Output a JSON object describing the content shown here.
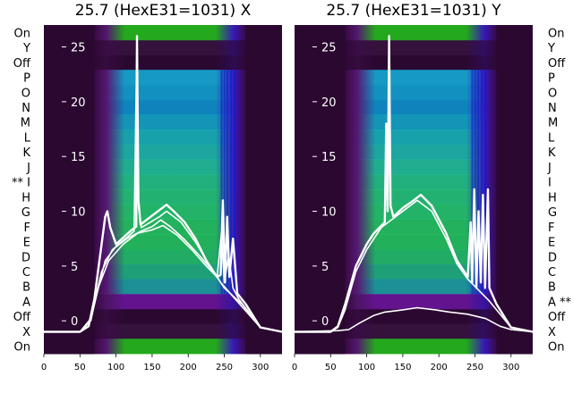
{
  "chart_data": [
    {
      "type": "heatmap",
      "title": "25.7 (HexE31=1031) X",
      "xlim": [
        0,
        330
      ],
      "x_ticks": [
        0,
        50,
        100,
        150,
        200,
        250,
        300
      ],
      "overlay_ylim": [
        -3,
        27
      ],
      "overlay_y_ticks": [
        0,
        5,
        10,
        15,
        20,
        25
      ],
      "row_labels": [
        "On",
        "Y",
        "Off",
        "P",
        "O",
        "N",
        "M",
        "L",
        "K",
        "J",
        "** I",
        "H",
        "G",
        "F",
        "E",
        "D",
        "C",
        "B",
        "A",
        "Off",
        "X",
        "On"
      ],
      "marked_rows": [
        "I"
      ],
      "heat_band": {
        "x_start": 70,
        "x_end": 280
      },
      "series": [
        {
          "values": [
            [
              0,
              -1.0
            ],
            [
              50,
              -1.0
            ],
            [
              62,
              -0.5
            ],
            [
              70,
              2.0
            ],
            [
              80,
              7.0
            ],
            [
              85,
              9.5
            ],
            [
              88,
              10.0
            ],
            [
              92,
              8.5
            ],
            [
              100,
              7.0
            ],
            [
              110,
              7.6
            ],
            [
              120,
              8.2
            ],
            [
              128,
              8.6
            ],
            [
              129,
              26.0
            ],
            [
              131,
              11.0
            ],
            [
              134,
              8.8
            ],
            [
              150,
              9.6
            ],
            [
              170,
              10.6
            ],
            [
              180,
              10.0
            ],
            [
              195,
              9.0
            ],
            [
              210,
              7.5
            ],
            [
              225,
              5.5
            ],
            [
              240,
              4.0
            ],
            [
              245,
              4.2
            ],
            [
              248,
              11.0
            ],
            [
              251,
              3.5
            ],
            [
              254,
              9.5
            ],
            [
              257,
              4.0
            ],
            [
              262,
              7.5
            ],
            [
              268,
              2.5
            ],
            [
              280,
              1.5
            ],
            [
              300,
              -0.6
            ],
            [
              330,
              -1.0
            ]
          ]
        },
        {
          "values": [
            [
              0,
              -1.0
            ],
            [
              50,
              -1.0
            ],
            [
              62,
              -0.5
            ],
            [
              70,
              1.5
            ],
            [
              85,
              5.5
            ],
            [
              100,
              6.8
            ],
            [
              115,
              7.6
            ],
            [
              125,
              8.2
            ],
            [
              129,
              26.0
            ],
            [
              131,
              10.5
            ],
            [
              135,
              8.5
            ],
            [
              160,
              9.5
            ],
            [
              170,
              10.0
            ],
            [
              190,
              9.0
            ],
            [
              210,
              7.2
            ],
            [
              230,
              5.0
            ],
            [
              240,
              4.0
            ],
            [
              246,
              8.0
            ],
            [
              250,
              3.5
            ],
            [
              256,
              6.0
            ],
            [
              262,
              3.0
            ],
            [
              270,
              2.0
            ],
            [
              300,
              -0.6
            ],
            [
              330,
              -1.0
            ]
          ]
        },
        {
          "values": [
            [
              0,
              -1.0
            ],
            [
              50,
              -1.0
            ],
            [
              65,
              0.0
            ],
            [
              75,
              3.0
            ],
            [
              90,
              5.5
            ],
            [
              110,
              7.0
            ],
            [
              130,
              8.0
            ],
            [
              150,
              8.3
            ],
            [
              165,
              8.7
            ],
            [
              185,
              7.8
            ],
            [
              205,
              6.5
            ],
            [
              225,
              5.0
            ],
            [
              240,
              4.0
            ],
            [
              250,
              3.0
            ],
            [
              275,
              1.5
            ],
            [
              300,
              -0.6
            ],
            [
              330,
              -1.0
            ]
          ]
        },
        {
          "values": [
            [
              0,
              -1.0
            ],
            [
              50,
              -1.0
            ],
            [
              65,
              0.2
            ],
            [
              80,
              4.5
            ],
            [
              95,
              6.5
            ],
            [
              115,
              7.5
            ],
            [
              135,
              8.2
            ],
            [
              150,
              8.6
            ],
            [
              162,
              9.2
            ],
            [
              175,
              8.6
            ],
            [
              195,
              7.4
            ],
            [
              215,
              6.0
            ],
            [
              235,
              4.5
            ],
            [
              245,
              3.5
            ],
            [
              265,
              2.0
            ],
            [
              300,
              -0.6
            ],
            [
              330,
              -1.0
            ]
          ]
        }
      ]
    },
    {
      "type": "heatmap",
      "title": "25.7 (HexE31=1031) Y",
      "xlim": [
        0,
        330
      ],
      "x_ticks": [
        0,
        50,
        100,
        150,
        200,
        250,
        300
      ],
      "overlay_ylim": [
        -3,
        27
      ],
      "overlay_y_ticks": [
        0,
        5,
        10,
        15,
        20,
        25
      ],
      "row_labels": [
        "On",
        "Y",
        "Off",
        "P",
        "O",
        "N",
        "M",
        "L",
        "K",
        "J",
        "I",
        "H",
        "G",
        "F",
        "E",
        "D",
        "C",
        "B",
        "A **",
        "Off",
        "X",
        "On"
      ],
      "marked_rows": [
        "A"
      ],
      "heat_band": {
        "x_start": 70,
        "x_end": 280
      },
      "series": [
        {
          "values": [
            [
              0,
              -1.0
            ],
            [
              50,
              -1.0
            ],
            [
              60,
              -0.5
            ],
            [
              70,
              1.5
            ],
            [
              85,
              5.0
            ],
            [
              100,
              7.0
            ],
            [
              110,
              8.0
            ],
            [
              125,
              9.0
            ],
            [
              127,
              18.0
            ],
            [
              129,
              10.0
            ],
            [
              131,
              26.0
            ],
            [
              133,
              10.5
            ],
            [
              137,
              9.5
            ],
            [
              150,
              10.3
            ],
            [
              165,
              11.0
            ],
            [
              175,
              11.5
            ],
            [
              190,
              10.5
            ],
            [
              210,
              8.0
            ],
            [
              225,
              5.5
            ],
            [
              240,
              4.0
            ],
            [
              244,
              9.0
            ],
            [
              246,
              3.5
            ],
            [
              249,
              12.0
            ],
            [
              252,
              3.0
            ],
            [
              255,
              10.0
            ],
            [
              258,
              3.5
            ],
            [
              261,
              11.5
            ],
            [
              264,
              3.0
            ],
            [
              268,
              12.0
            ],
            [
              270,
              3.0
            ],
            [
              280,
              1.5
            ],
            [
              300,
              -0.6
            ],
            [
              330,
              -1.0
            ]
          ]
        },
        {
          "values": [
            [
              0,
              -1.0
            ],
            [
              50,
              -1.0
            ],
            [
              60,
              -0.6
            ],
            [
              70,
              1.0
            ],
            [
              85,
              4.5
            ],
            [
              100,
              6.5
            ],
            [
              120,
              8.5
            ],
            [
              150,
              10.0
            ],
            [
              170,
              11.0
            ],
            [
              190,
              10.0
            ],
            [
              210,
              7.5
            ],
            [
              225,
              5.2
            ],
            [
              240,
              3.8
            ],
            [
              270,
              1.8
            ],
            [
              300,
              -0.6
            ],
            [
              330,
              -1.0
            ]
          ]
        },
        {
          "values": [
            [
              0,
              -1.0
            ],
            [
              60,
              -0.9
            ],
            [
              75,
              -0.8
            ],
            [
              90,
              -0.2
            ],
            [
              110,
              0.5
            ],
            [
              125,
              0.8
            ],
            [
              150,
              1.0
            ],
            [
              170,
              1.2
            ],
            [
              195,
              1.0
            ],
            [
              215,
              0.8
            ],
            [
              240,
              0.6
            ],
            [
              265,
              0.2
            ],
            [
              285,
              -0.5
            ],
            [
              300,
              -0.8
            ],
            [
              330,
              -1.0
            ]
          ]
        }
      ]
    }
  ]
}
